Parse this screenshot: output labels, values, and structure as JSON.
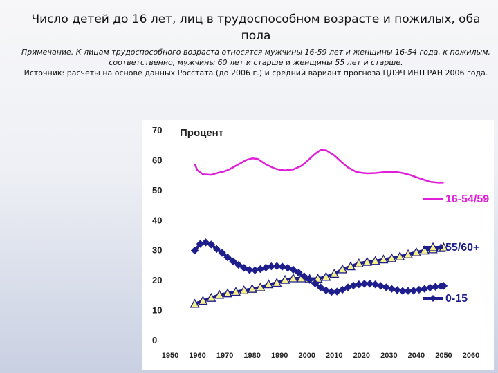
{
  "title": "Число детей до 16 лет, лиц в трудоспособном возрасте и пожилых, оба пола",
  "note": "Примечание. К лицам трудоспособного возраста относятся мужчины 16-59 лет и женщины 16-54 года, к пожилым, соответственно, мужчины 60 лет и старше и женщины 55 лет и старше.",
  "source": "Источник: расчеты на основе данных Росстата (до 2006 г.) и средний вариант прогноза ЦДЭЧ ИНП РАН 2006 года.",
  "chart_data": {
    "type": "line",
    "ylabel": "Процент",
    "xlim": [
      1950,
      2060
    ],
    "ylim": [
      0,
      70
    ],
    "x_ticks": [
      "1950",
      "1960",
      "1970",
      "1980",
      "1990",
      "2000",
      "2010",
      "2020",
      "2030",
      "2040",
      "2050",
      "2060"
    ],
    "y_ticks": [
      "0",
      "10",
      "20",
      "30",
      "40",
      "50",
      "60",
      "70"
    ],
    "series": [
      {
        "name": "16-54/59",
        "color": "#e020d8",
        "marker": "none",
        "x": [
          1959,
          1960,
          1962,
          1965,
          1968,
          1970,
          1972,
          1975,
          1978,
          1980,
          1982,
          1985,
          1988,
          1990,
          1992,
          1995,
          1998,
          2000,
          2003,
          2005,
          2007,
          2010,
          2013,
          2015,
          2018,
          2020,
          2022,
          2025,
          2028,
          2030,
          2033,
          2035,
          2038,
          2040,
          2043,
          2045,
          2048,
          2050
        ],
        "y": [
          58.5,
          56.5,
          55.2,
          55.0,
          55.8,
          56.2,
          57.0,
          58.5,
          60.0,
          60.5,
          60.3,
          58.5,
          57.2,
          56.7,
          56.5,
          56.8,
          58.0,
          59.5,
          62.0,
          63.3,
          63.2,
          61.5,
          59.0,
          57.5,
          56.0,
          55.7,
          55.5,
          55.6,
          55.9,
          56.0,
          55.9,
          55.6,
          54.9,
          54.2,
          53.3,
          52.7,
          52.4,
          52.4
        ]
      },
      {
        "name": "55/60+",
        "color": "#1e1e8c",
        "marker": "triangle",
        "x": [
          1959,
          1962,
          1965,
          1968,
          1971,
          1974,
          1977,
          1980,
          1983,
          1986,
          1989,
          1992,
          1995,
          1998,
          2001,
          2004,
          2007,
          2010,
          2013,
          2016,
          2019,
          2022,
          2025,
          2028,
          2031,
          2034,
          2037,
          2040,
          2043,
          2046,
          2049,
          2050
        ],
        "y": [
          12.0,
          13.0,
          14.0,
          15.0,
          15.5,
          16.0,
          16.5,
          17.0,
          17.5,
          18.5,
          19.0,
          20.0,
          20.5,
          20.5,
          20.3,
          20.4,
          21.0,
          22.0,
          23.5,
          24.5,
          25.5,
          26.0,
          26.3,
          26.8,
          27.2,
          27.8,
          28.5,
          29.2,
          29.8,
          30.2,
          30.6,
          30.8
        ]
      },
      {
        "name": "0-15",
        "color": "#1e1e8c",
        "marker": "diamond",
        "x": [
          1959,
          1961,
          1963,
          1965,
          1967,
          1969,
          1971,
          1973,
          1975,
          1977,
          1979,
          1981,
          1983,
          1985,
          1987,
          1989,
          1991,
          1993,
          1995,
          1997,
          1999,
          2001,
          2003,
          2005,
          2007,
          2009,
          2011,
          2013,
          2015,
          2017,
          2019,
          2021,
          2023,
          2025,
          2027,
          2029,
          2031,
          2033,
          2035,
          2037,
          2039,
          2041,
          2043,
          2045,
          2047,
          2049,
          2050
        ],
        "y": [
          29.8,
          32.0,
          32.5,
          31.8,
          30.3,
          29.0,
          27.5,
          26.2,
          25.0,
          24.0,
          23.3,
          23.2,
          23.6,
          24.1,
          24.5,
          24.6,
          24.4,
          24.0,
          23.4,
          22.4,
          21.2,
          20.0,
          18.8,
          17.5,
          16.5,
          16.0,
          16.1,
          16.7,
          17.5,
          18.1,
          18.5,
          18.7,
          18.7,
          18.5,
          18.0,
          17.5,
          17.0,
          16.6,
          16.3,
          16.3,
          16.4,
          16.7,
          17.0,
          17.4,
          17.7,
          17.9,
          18.0
        ]
      }
    ]
  }
}
